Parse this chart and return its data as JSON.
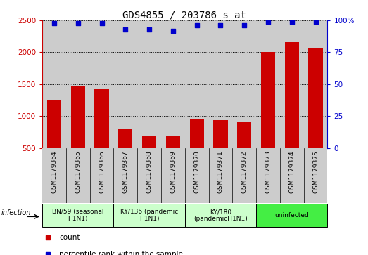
{
  "title": "GDS4855 / 203786_s_at",
  "samples": [
    "GSM1179364",
    "GSM1179365",
    "GSM1179366",
    "GSM1179367",
    "GSM1179368",
    "GSM1179369",
    "GSM1179370",
    "GSM1179371",
    "GSM1179372",
    "GSM1179373",
    "GSM1179374",
    "GSM1179375"
  ],
  "counts": [
    1260,
    1470,
    1430,
    790,
    690,
    690,
    960,
    940,
    910,
    2010,
    2160,
    2070
  ],
  "percentiles": [
    98,
    98,
    98,
    93,
    93,
    92,
    96,
    96,
    96,
    99,
    99,
    99
  ],
  "groups": [
    {
      "label": "BN/59 (seasonal\nH1N1)",
      "start": 0,
      "end": 3,
      "color": "#ccffcc"
    },
    {
      "label": "KY/136 (pandemic\nH1N1)",
      "start": 3,
      "end": 6,
      "color": "#ccffcc"
    },
    {
      "label": "KY/180\n(pandemicH1N1)",
      "start": 6,
      "end": 9,
      "color": "#ccffcc"
    },
    {
      "label": "uninfected",
      "start": 9,
      "end": 12,
      "color": "#44ee44"
    }
  ],
  "ylim_left": [
    500,
    2500
  ],
  "ylim_right": [
    0,
    100
  ],
  "yticks_left": [
    500,
    1000,
    1500,
    2000,
    2500
  ],
  "yticks_right": [
    0,
    25,
    50,
    75,
    100
  ],
  "bar_color": "#cc0000",
  "dot_color": "#0000cc",
  "grid_color": "#000000",
  "bg_color": "#ffffff",
  "sample_bg": "#cccccc",
  "left_label_color": "#cc0000",
  "right_label_color": "#0000cc",
  "infection_label": "infection",
  "legend_count": "count",
  "legend_percentile": "percentile rank within the sample",
  "title_font": "monospace",
  "title_fontsize": 10
}
